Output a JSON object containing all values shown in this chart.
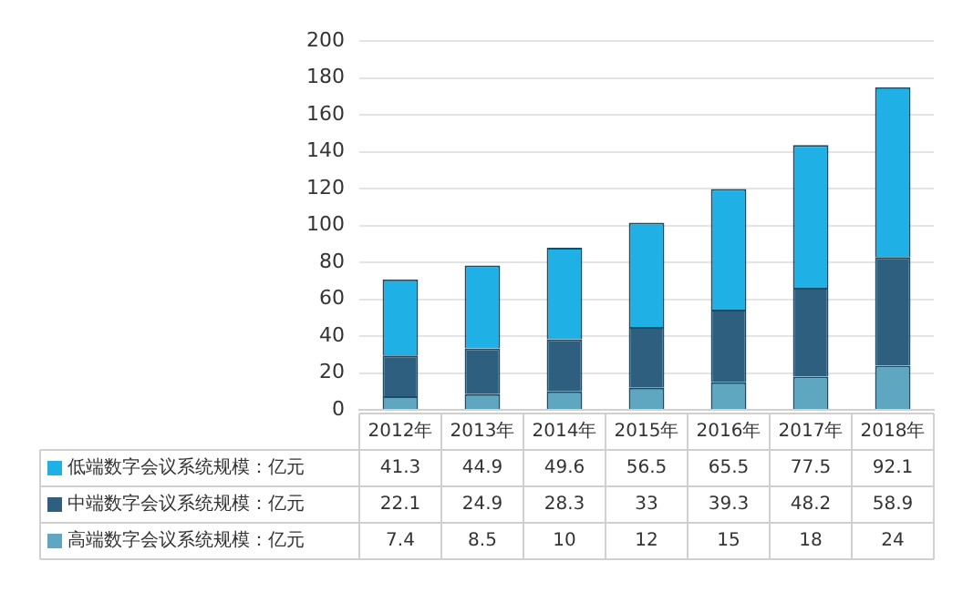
{
  "chart_data": {
    "type": "bar",
    "stacked": true,
    "categories": [
      "2012年",
      "2013年",
      "2014年",
      "2015年",
      "2016年",
      "2017年",
      "2018年"
    ],
    "series": [
      {
        "name": "高端数字会议系统规模：亿元",
        "color": "#5fa6c0",
        "values": [
          7.4,
          8.5,
          10,
          12,
          15,
          18,
          24
        ]
      },
      {
        "name": "中端数字会议系统规模：亿元",
        "color": "#2e5f7e",
        "values": [
          22.1,
          24.9,
          28.3,
          33,
          39.3,
          48.2,
          58.9
        ]
      },
      {
        "name": "低端数字会议系统规模：亿元",
        "color": "#1fb0e6",
        "values": [
          41.3,
          44.9,
          49.6,
          56.5,
          65.5,
          77.5,
          92.1
        ]
      }
    ],
    "ylim": [
      0,
      200
    ],
    "yticks": [
      0,
      20,
      40,
      60,
      80,
      100,
      120,
      140,
      160,
      180,
      200
    ],
    "grid": "y",
    "legend": "bottom",
    "data_labels": true
  }
}
